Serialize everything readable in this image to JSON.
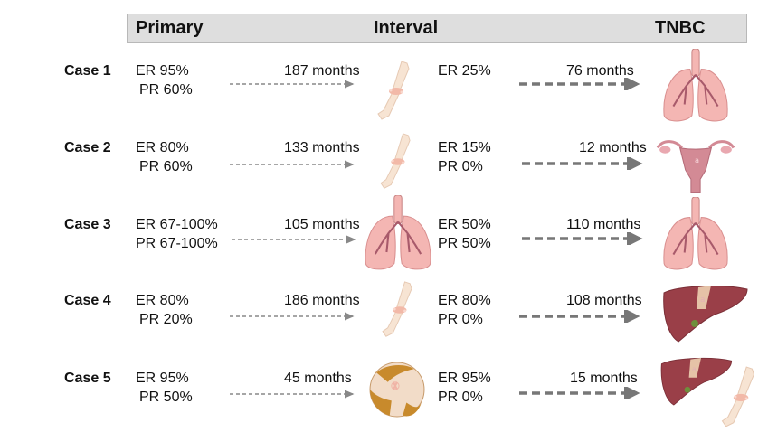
{
  "header": {
    "primary": "Primary",
    "interval": "Interval",
    "tnbc": "TNBC"
  },
  "cases": [
    {
      "label": "Case 1",
      "primary": [
        "ER 95%",
        "PR 60%"
      ],
      "interval_time": "187 months",
      "interval_site": "bone-icon",
      "interval": [
        "ER 25%"
      ],
      "tnbc_time": "76 months",
      "tnbc_site": "lungs-icon"
    },
    {
      "label": "Case 2",
      "primary": [
        "ER 80%",
        "PR 60%"
      ],
      "interval_time": "133 months",
      "interval_site": "bone-icon",
      "interval": [
        "ER 15%",
        "PR 0%"
      ],
      "tnbc_time": "12 months",
      "tnbc_site": "uterus-icon"
    },
    {
      "label": "Case 3",
      "primary": [
        "ER 67-100%",
        "PR 67-100%"
      ],
      "interval_time": "105 months",
      "interval_site": "lungs-icon",
      "interval": [
        "ER 50%",
        "PR 50%"
      ],
      "tnbc_time": "110 months",
      "tnbc_site": "lungs-icon"
    },
    {
      "label": "Case 4",
      "primary": [
        "ER 80%",
        "PR 20%"
      ],
      "interval_time": "186 months",
      "interval_site": "bone-icon",
      "interval": [
        "ER 80%",
        "PR 0%"
      ],
      "tnbc_time": "108 months",
      "tnbc_site": "liver-icon"
    },
    {
      "label": "Case 5",
      "primary": [
        "ER 95%",
        "PR 50%"
      ],
      "interval_time": "45 months",
      "interval_site": "skin-icon",
      "interval": [
        "ER 95%",
        "PR 0%"
      ],
      "tnbc_time": "15 months",
      "tnbc_site": "liver-bone-icon"
    }
  ],
  "colors": {
    "header_bg": "#dedede",
    "arrow_thin": "#888888",
    "arrow_thick": "#777777",
    "lung_fill": "#f4b6b3",
    "lung_vessel": "#a85a6b",
    "bone": "#f7e4d3",
    "bone_joint": "#f2b9a8",
    "liver": "#9a3f48",
    "uterus": "#d38a95",
    "skin": "#c88a2c"
  }
}
